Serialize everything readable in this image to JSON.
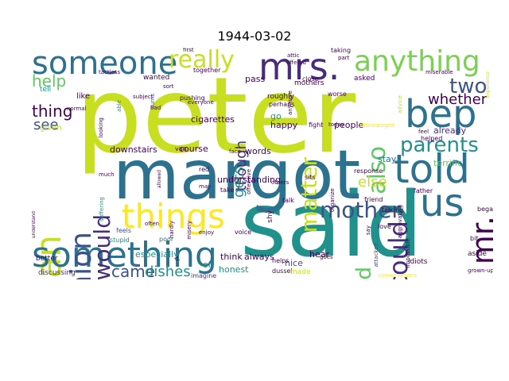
{
  "title": "1944-03-02",
  "colors": {
    "yellow_green": "#c8df21",
    "lime": "#addc30",
    "teal": "#21918c",
    "steel_blue": "#2c728e",
    "slate": "#3b528b",
    "indigo": "#472d7b",
    "dark_purple": "#440154",
    "green": "#5ec962",
    "mint": "#7ad151",
    "sea": "#27ad81",
    "yellow": "#fde725"
  },
  "words": [
    {
      "text": "peter"
    },
    {
      "text": "said"
    },
    {
      "text": "margot"
    },
    {
      "text": "someone"
    },
    {
      "text": "told"
    },
    {
      "text": "bep"
    },
    {
      "text": "mrs."
    },
    {
      "text": "anything"
    },
    {
      "text": "really"
    },
    {
      "text": "daan"
    },
    {
      "text": "something"
    },
    {
      "text": "things"
    },
    {
      "text": "us"
    },
    {
      "text": "mr."
    },
    {
      "text": "opinion"
    },
    {
      "text": "would"
    },
    {
      "text": "could"
    },
    {
      "text": "parents"
    },
    {
      "text": "mother"
    },
    {
      "text": "two"
    },
    {
      "text": "also"
    },
    {
      "text": "talked"
    },
    {
      "text": "matter"
    },
    {
      "text": "whether"
    },
    {
      "text": "help"
    },
    {
      "text": "thing"
    },
    {
      "text": "see"
    },
    {
      "text": "came"
    },
    {
      "text": "dishes"
    },
    {
      "text": "though"
    },
    {
      "text": "gets"
    },
    {
      "text": "else"
    },
    {
      "text": "sarcastic"
    },
    {
      "text": "especially"
    },
    {
      "text": "understanding"
    },
    {
      "text": "cigarettes"
    },
    {
      "text": "course"
    },
    {
      "text": "downstairs"
    },
    {
      "text": "words"
    },
    {
      "text": "think"
    },
    {
      "text": "honest"
    },
    {
      "text": "always"
    },
    {
      "text": "nice"
    },
    {
      "text": "hear"
    },
    {
      "text": "people"
    },
    {
      "text": "already"
    },
    {
      "text": "terrific"
    },
    {
      "text": "put"
    },
    {
      "text": "discussing"
    },
    {
      "text": "imagine"
    },
    {
      "text": "better"
    },
    {
      "text": "stupid"
    },
    {
      "text": "poor"
    },
    {
      "text": "oh"
    },
    {
      "text": "feels"
    },
    {
      "text": "happy"
    },
    {
      "text": "go"
    },
    {
      "text": "stay"
    },
    {
      "text": "pass"
    },
    {
      "text": "wanted"
    },
    {
      "text": "like"
    },
    {
      "text": "tell"
    },
    {
      "text": "given"
    },
    {
      "text": "pushing"
    },
    {
      "text": "together"
    },
    {
      "text": "first"
    },
    {
      "text": "taking"
    },
    {
      "text": "mothers"
    },
    {
      "text": "asked"
    },
    {
      "text": "tactless"
    },
    {
      "text": "attic"
    },
    {
      "text": "offered"
    },
    {
      "text": "miserable"
    },
    {
      "text": "experience"
    },
    {
      "text": "advice"
    },
    {
      "text": "fight"
    },
    {
      "text": "today"
    },
    {
      "text": "discouraged"
    },
    {
      "text": "dussel"
    },
    {
      "text": "shy"
    },
    {
      "text": "made"
    },
    {
      "text": "goes"
    },
    {
      "text": "aside"
    },
    {
      "text": "idiots"
    },
    {
      "text": "attacked"
    },
    {
      "text": "conversations"
    },
    {
      "text": "grown-ups"
    },
    {
      "text": "wish"
    },
    {
      "text": "know"
    },
    {
      "text": "began"
    },
    {
      "text": "bit"
    },
    {
      "text": "love"
    },
    {
      "text": "friend"
    },
    {
      "text": "talking"
    },
    {
      "text": "father"
    },
    {
      "text": "response"
    },
    {
      "text": "organize"
    },
    {
      "text": "sits"
    },
    {
      "text": "others"
    },
    {
      "text": "talk"
    },
    {
      "text": "voice"
    },
    {
      "text": "helps"
    },
    {
      "text": "perhaps"
    },
    {
      "text": "roughly"
    },
    {
      "text": "close"
    },
    {
      "text": "worse"
    },
    {
      "text": "part"
    },
    {
      "text": "anymore"
    },
    {
      "text": "feel"
    },
    {
      "text": "helped"
    },
    {
      "text": "face"
    },
    {
      "text": "everyone"
    },
    {
      "text": "subject"
    },
    {
      "text": "bad"
    },
    {
      "text": "sort"
    },
    {
      "text": "able"
    },
    {
      "text": "turns"
    },
    {
      "text": "normal"
    },
    {
      "text": "looking"
    },
    {
      "text": "much"
    },
    {
      "text": "often"
    },
    {
      "text": "allowed"
    },
    {
      "text": "hardly"
    },
    {
      "text": "misery"
    },
    {
      "text": "enjoy"
    },
    {
      "text": "may"
    },
    {
      "text": "take"
    },
    {
      "text": "red"
    },
    {
      "text": "van"
    },
    {
      "text": "suffering"
    },
    {
      "text": "understand"
    },
    {
      "text": "d."
    },
    {
      "text": "offensive"
    },
    {
      "text": "say"
    },
    {
      "text": "aggravating"
    },
    {
      "text": "impossible"
    },
    {
      "text": "annoyance"
    }
  ]
}
